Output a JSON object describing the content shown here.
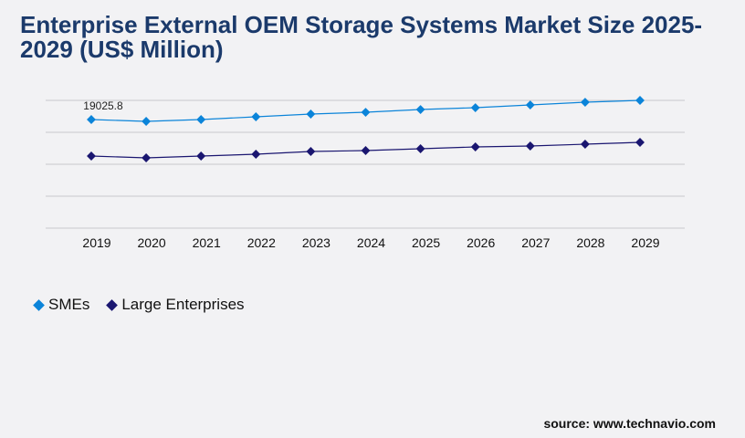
{
  "title": "Enterprise External OEM Storage Systems Market Size 2025-2029 (US$ Million)",
  "source": "source: www.technavio.com",
  "chart_data": {
    "type": "line",
    "title": "Enterprise External OEM Storage Systems Market Size 2025-2029 (US$ Million)",
    "categories": [
      "2019",
      "2020",
      "2021",
      "2022",
      "2023",
      "2024",
      "2025",
      "2026",
      "2027",
      "2028",
      "2029"
    ],
    "series": [
      {
        "name": "SMEs",
        "color": "#0b84d9",
        "values": [
          19025.8,
          18706,
          19026,
          19505,
          19985,
          20304,
          20784,
          21103,
          21583,
          22062,
          22385
        ]
      },
      {
        "name": "Large Enterprises",
        "color": "#1a1670",
        "values": [
          12631,
          12311,
          12631,
          12950,
          13430,
          13590,
          13909,
          14229,
          14389,
          14709,
          15029
        ]
      }
    ],
    "data_labels": [
      {
        "series": "SMEs",
        "category": "2019",
        "text": "19025.8"
      }
    ],
    "ylim": [
      0,
      22385
    ],
    "grid": true,
    "legend": "bottom-left",
    "xlabel": "",
    "ylabel": ""
  }
}
